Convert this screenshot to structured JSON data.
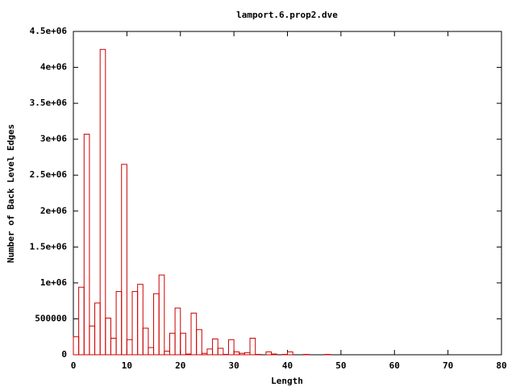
{
  "chart_data": {
    "type": "histogram",
    "title": "lamport.6.prop2.dve",
    "x_label": "Length",
    "y_label": "Number of Back Level Edges",
    "color": "#cc0000",
    "bins": [
      0,
      1,
      2,
      3,
      4,
      5,
      6,
      7,
      8,
      9,
      10,
      11,
      12,
      13,
      14,
      15,
      16,
      17,
      18,
      19,
      20,
      21,
      22,
      23,
      24,
      25,
      26,
      27,
      28,
      29,
      30,
      31,
      32,
      33,
      34,
      35,
      36,
      37,
      38,
      39,
      40,
      41,
      42,
      43,
      44,
      45,
      46,
      47,
      48
    ],
    "values": [
      250000,
      940000,
      3070000,
      400000,
      720000,
      4250000,
      510000,
      230000,
      880000,
      2650000,
      210000,
      880000,
      980000,
      370000,
      100000,
      850000,
      1110000,
      50000,
      300000,
      650000,
      300000,
      10000,
      580000,
      350000,
      20000,
      80000,
      220000,
      90000,
      5000,
      210000,
      40000,
      20000,
      30000,
      230000,
      5000,
      0,
      40000,
      10000,
      0,
      5000,
      40000,
      0,
      0,
      5000,
      0,
      0,
      0,
      5000
    ],
    "xlim": [
      0,
      80
    ],
    "xticks": [
      0,
      10,
      20,
      30,
      40,
      50,
      60,
      70,
      80
    ],
    "ylim": [
      0,
      4500000
    ],
    "yticks": [
      0,
      500000,
      {
        "value": 1000000,
        "label": "1e+06"
      },
      {
        "value": 1500000,
        "label": "1.5e+06"
      },
      {
        "value": 2000000,
        "label": "2e+06"
      },
      {
        "value": 2500000,
        "label": "2.5e+06"
      },
      {
        "value": 3000000,
        "label": "3e+06"
      },
      {
        "value": 3500000,
        "label": "3.5e+06"
      },
      {
        "value": 4000000,
        "label": "4e+06"
      },
      {
        "value": 4500000,
        "label": "4.5e+06"
      }
    ]
  }
}
